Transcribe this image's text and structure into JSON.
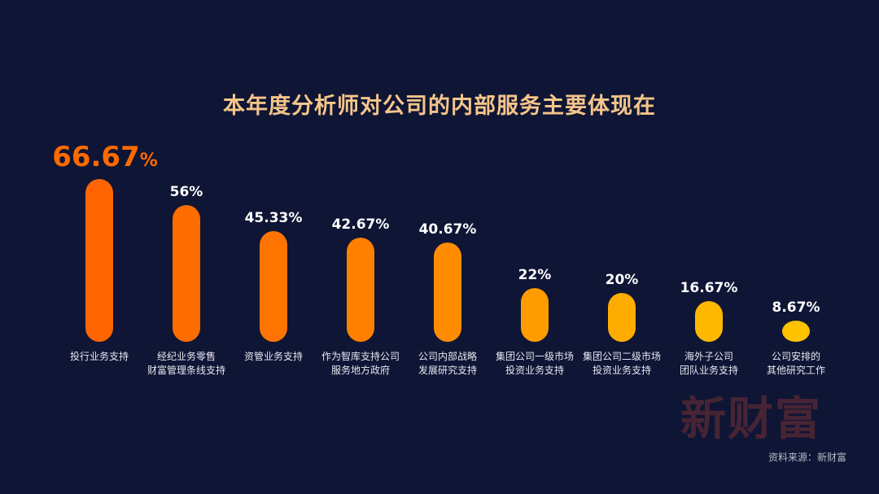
{
  "chart_data": {
    "type": "bar",
    "title": "本年度分析师对公司的内部服务主要体现在",
    "categories": [
      [
        "投行业务支持"
      ],
      [
        "经纪业务零售",
        "财富管理条线支持"
      ],
      [
        "资管业务支持"
      ],
      [
        "作为智库支持公司",
        "服务地方政府"
      ],
      [
        "公司内部战略",
        "发展研究支持"
      ],
      [
        "集团公司一级市场",
        "投资业务支持"
      ],
      [
        "集团公司二级市场",
        "投资业务支持"
      ],
      [
        "海外子公司",
        "团队业务支持"
      ],
      [
        "公司安排的",
        "其他研究工作"
      ]
    ],
    "values": [
      66.67,
      56,
      45.33,
      42.67,
      40.67,
      22,
      20,
      16.67,
      8.67
    ],
    "value_labels": [
      "66.67",
      "56%",
      "45.33%",
      "42.67%",
      "40.67%",
      "22%",
      "20%",
      "16.67%",
      "8.67%"
    ],
    "value_suffix_first": "%",
    "ylim": [
      0,
      66.67
    ],
    "colors": [
      "#ff6400",
      "#ff6c00",
      "#ff7400",
      "#ff8000",
      "#ff8c00",
      "#ff9c00",
      "#ffac00",
      "#ffb800",
      "#ffc200"
    ]
  },
  "watermark": "新财富",
  "source": "资料来源：新财富"
}
